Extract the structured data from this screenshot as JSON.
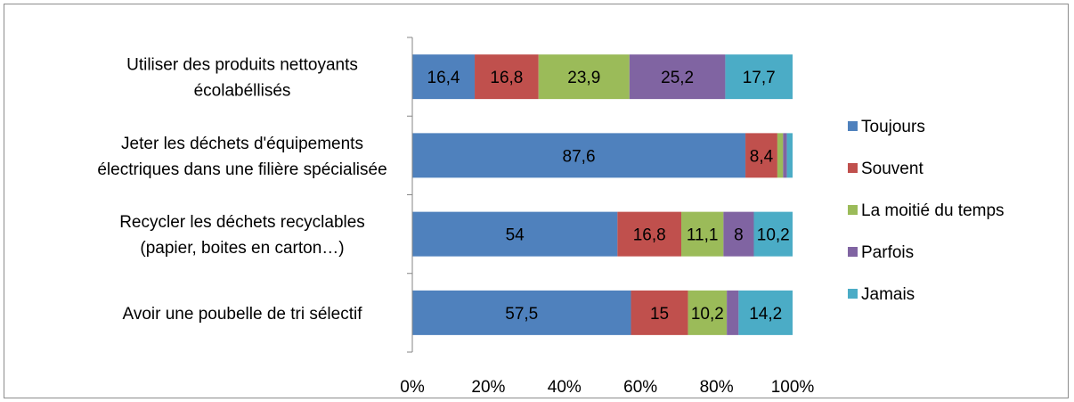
{
  "chart_data": {
    "type": "bar",
    "orientation": "horizontal",
    "stacked": "percent",
    "categories": [
      [
        "Utiliser des produits nettoyants",
        "écolabéllisés"
      ],
      [
        "Jeter les déchets d'équipements",
        "électriques dans une filière spécialisée"
      ],
      [
        "Recycler les déchets recyclables",
        "(papier, boites en carton…)"
      ],
      [
        "Avoir une poubelle de tri sélectif"
      ]
    ],
    "series": [
      {
        "name": "Toujours",
        "color": "#4f81bd",
        "values": [
          16.4,
          87.6,
          54,
          57.5
        ],
        "labels": [
          "16,4",
          "87,6",
          "54",
          "57,5"
        ]
      },
      {
        "name": "Souvent",
        "color": "#c0504d",
        "values": [
          16.8,
          8.4,
          16.8,
          15
        ],
        "labels": [
          "16,8",
          "8,4",
          "16,8",
          "15"
        ]
      },
      {
        "name": "La moitié du temps",
        "color": "#9bbb59",
        "values": [
          23.9,
          1.5,
          11.1,
          10.2
        ],
        "labels": [
          "23,9",
          "",
          "11,1",
          "10,2"
        ]
      },
      {
        "name": "Parfois",
        "color": "#8064a2",
        "values": [
          25.2,
          1.0,
          8,
          3.1
        ],
        "labels": [
          "25,2",
          "",
          "8",
          ""
        ]
      },
      {
        "name": "Jamais",
        "color": "#4bacc6",
        "values": [
          17.7,
          1.5,
          10.2,
          14.2
        ],
        "labels": [
          "17,7",
          "",
          "10,2",
          "14,2"
        ]
      }
    ],
    "x_ticks": [
      "0%",
      "20%",
      "40%",
      "60%",
      "80%",
      "100%"
    ],
    "xlim": [
      0,
      100
    ],
    "title": "",
    "xlabel": "",
    "ylabel": "",
    "grid": false,
    "legend_position": "right"
  }
}
